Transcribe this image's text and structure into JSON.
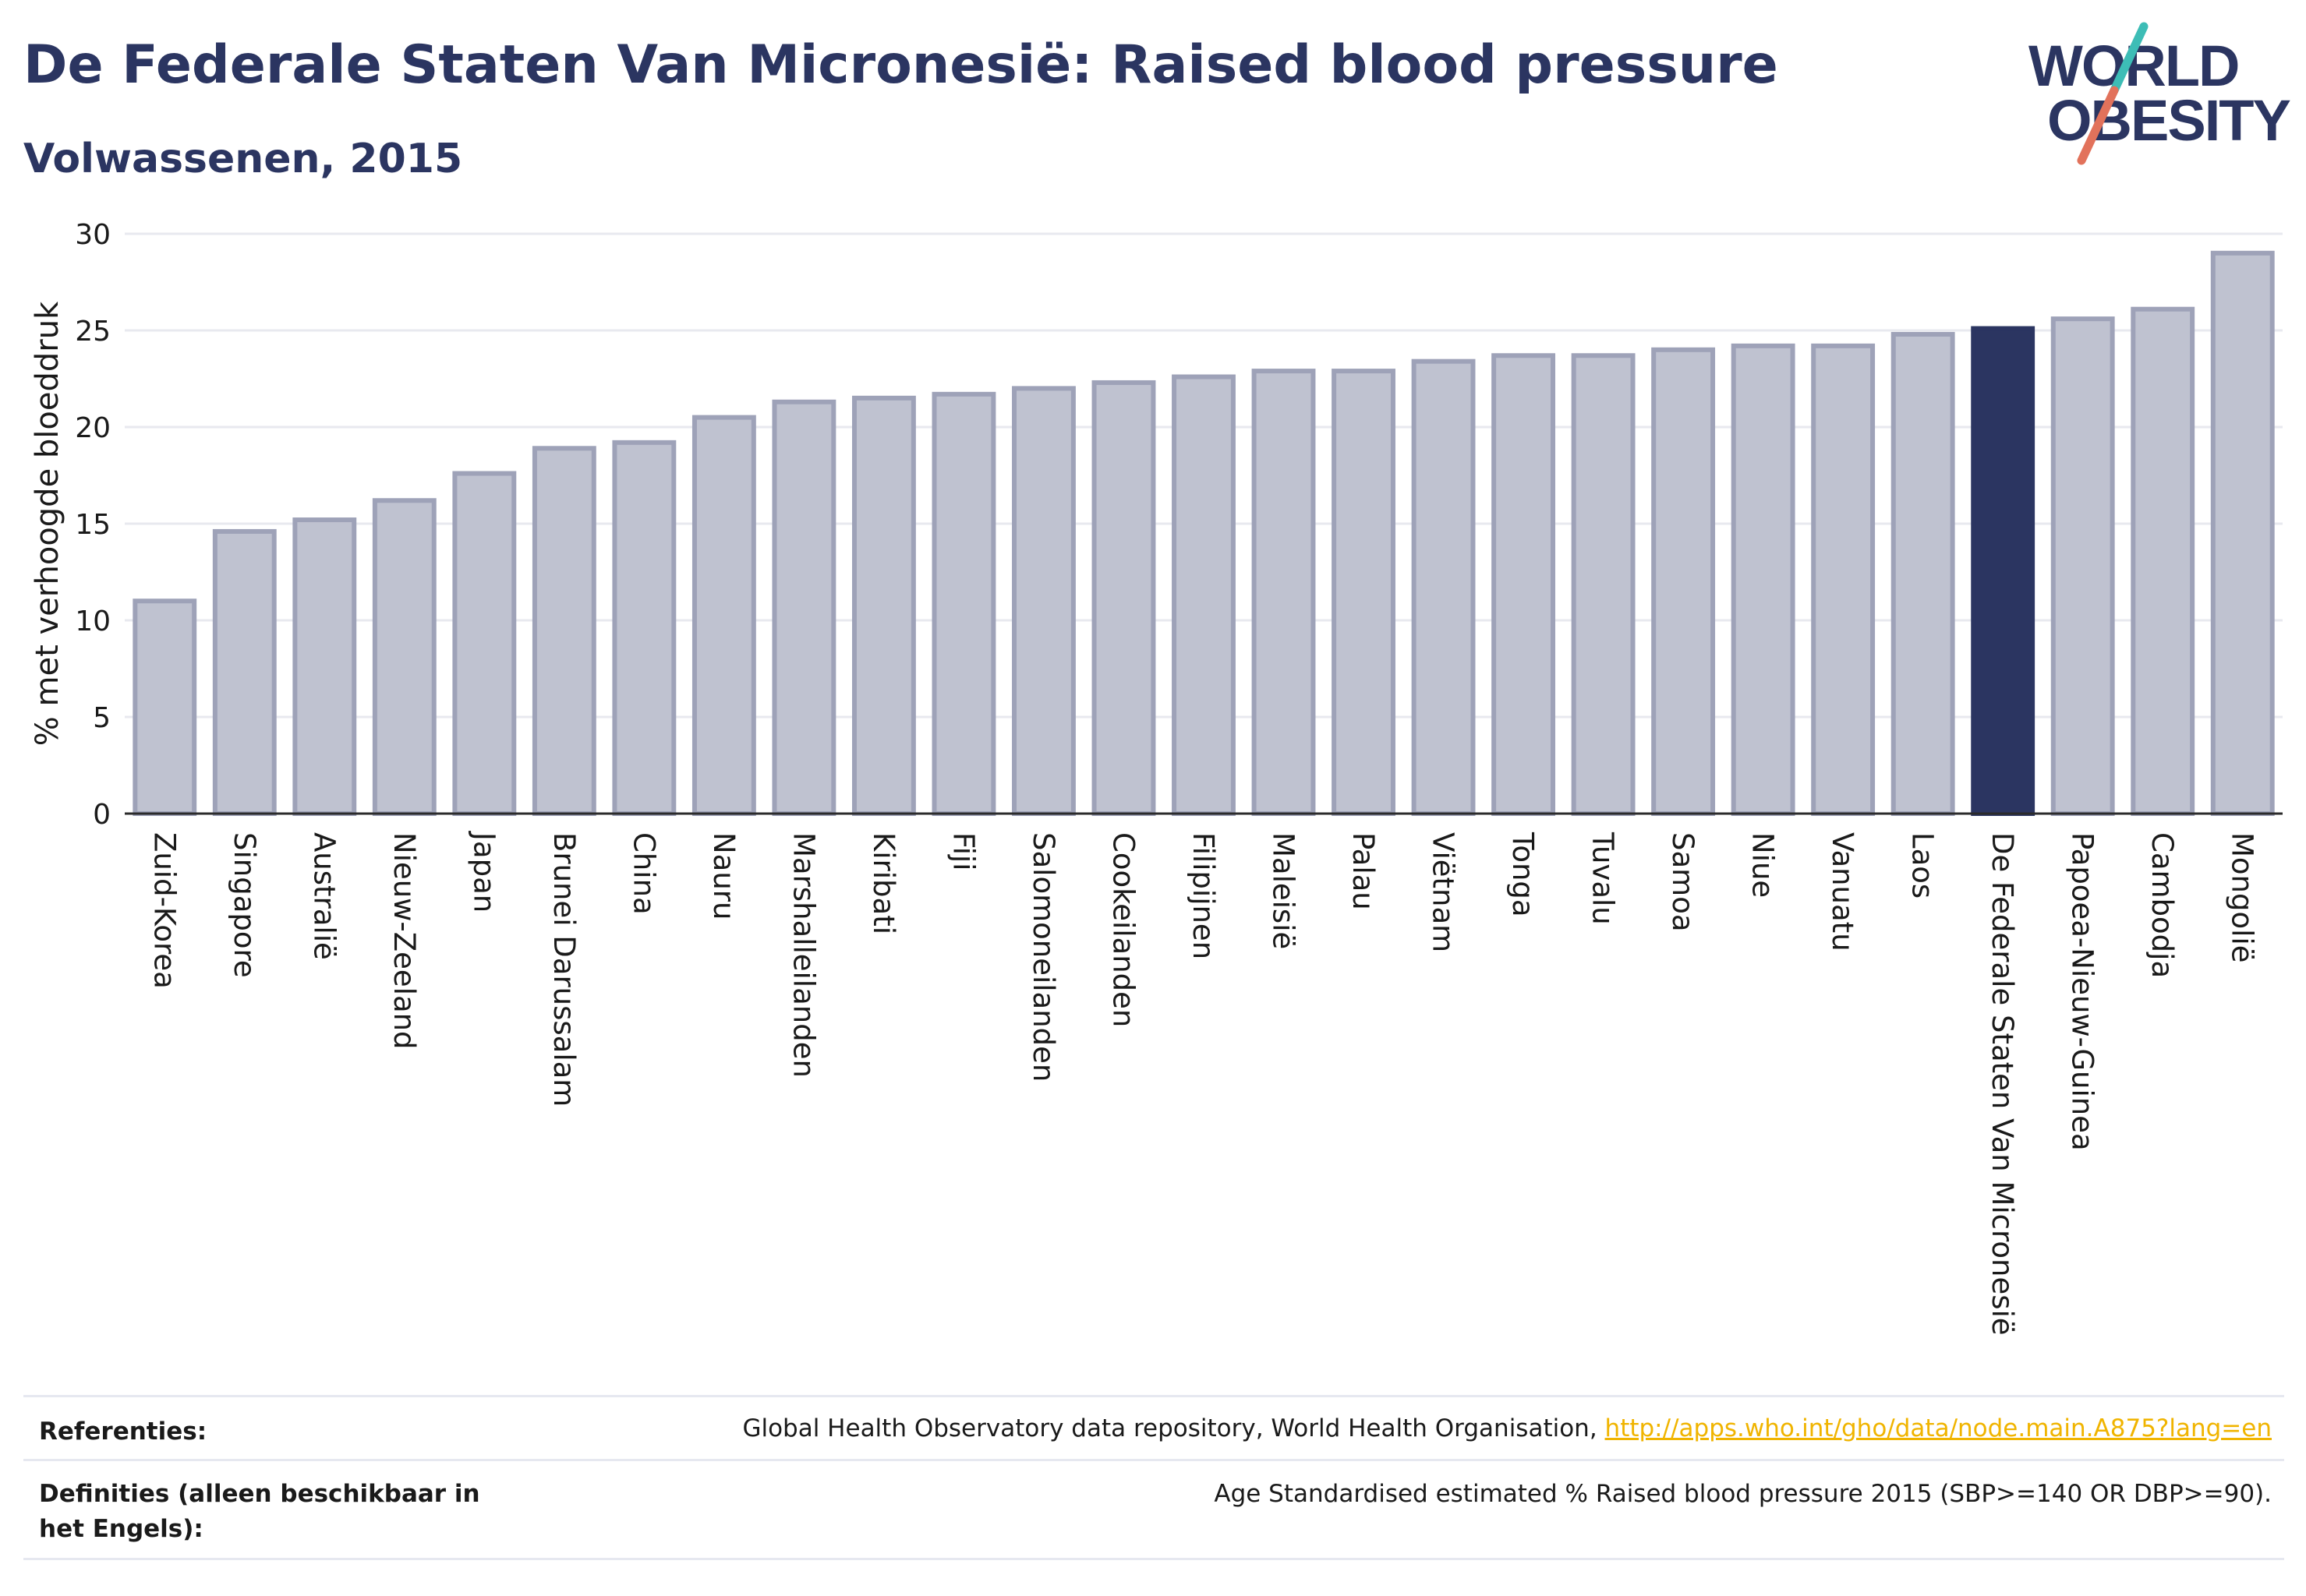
{
  "header": {
    "title": "De Federale Staten Van Micronesië: Raised blood pressure",
    "subtitle": "Volwassenen, 2015"
  },
  "logo": {
    "line1": "WORLD",
    "line2": "OBESITY",
    "colors": {
      "text": "#2b3561",
      "slash_top": "#3dbdb6",
      "slash_bottom": "#e2725b"
    }
  },
  "chart_data": {
    "type": "bar",
    "ylabel": "% met verhoogde bloeddruk",
    "xlabel": "",
    "ylim": [
      0,
      30
    ],
    "yticks": [
      0,
      5,
      10,
      15,
      20,
      25,
      30
    ],
    "grid": true,
    "categories": [
      "Zuid-Korea",
      "Singapore",
      "Australië",
      "Nieuw-Zeeland",
      "Japan",
      "Brunei Darussalam",
      "China",
      "Nauru",
      "Marshalleilanden",
      "Kiribati",
      "Fiji",
      "Salomoneilanden",
      "Cookeilanden",
      "Filipijnen",
      "Maleisië",
      "Palau",
      "Viëtnam",
      "Tonga",
      "Tuvalu",
      "Samoa",
      "Niue",
      "Vanuatu",
      "Laos",
      "De Federale Staten Van Micronesië",
      "Papoea-Nieuw-Guinea",
      "Cambodja",
      "Mongolië"
    ],
    "values": [
      11.0,
      14.6,
      15.2,
      16.2,
      17.6,
      18.9,
      19.2,
      20.5,
      21.3,
      21.5,
      21.7,
      22.0,
      22.3,
      22.6,
      22.9,
      22.9,
      23.4,
      23.7,
      23.7,
      24.0,
      24.2,
      24.2,
      24.8,
      25.1,
      25.6,
      26.1,
      29.0
    ],
    "highlight": "De Federale Staten Van Micronesië",
    "colors": {
      "bar": "#bfc2d0",
      "bar_edge": "#9ea2b8",
      "highlight": "#2b3561",
      "grid": "#e8e9ef",
      "axis": "#2b2b2b"
    }
  },
  "references": {
    "label": "Referenties:",
    "text": "Global Health Observatory data repository, World Health Organisation, ",
    "link": "http://apps.who.int/gho/data/node.main.A875?lang=en"
  },
  "definitions": {
    "label": "Definities (alleen beschikbaar in het Engels):",
    "text": "Age Standardised estimated % Raised blood pressure 2015 (SBP>=140 OR DBP>=90)."
  }
}
